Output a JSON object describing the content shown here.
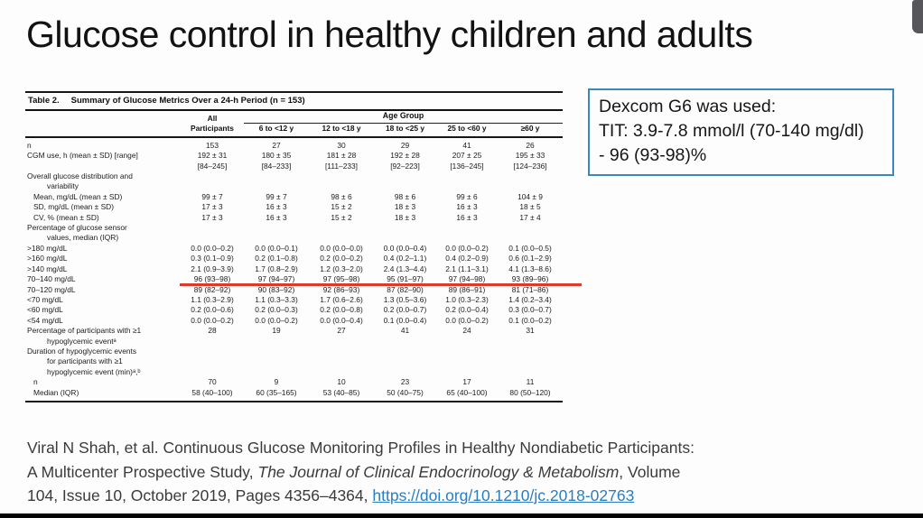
{
  "page": {
    "title": "Glucose control in healthy children and adults"
  },
  "chrome": {
    "scrollbar_thumb_color": "#57565b",
    "bottom_bar_color": "#060606"
  },
  "callout": {
    "border_color": "#3a87c6",
    "lines": [
      "Dexcom G6 was used:",
      "TIT: 3.9-7.8 mmol/l (70-140 mg/dl)",
      "- 96 (93-98)%"
    ]
  },
  "table": {
    "caption_label": "Table 2.",
    "caption_text": "Summary of Glucose Metrics Over a 24-h Period (n = 153)",
    "col_group_header": "Age Group",
    "highlight_color": "#e0392c",
    "columns": [
      "All\nParticipants",
      "6 to <12 y",
      "12 to <18 y",
      "18 to <25 y",
      "25 to <60 y",
      "≥60 y"
    ],
    "rows": [
      {
        "label": "n",
        "indent": 0,
        "values": [
          "153",
          "27",
          "30",
          "29",
          "41",
          "26"
        ]
      },
      {
        "label": "CGM use, h (mean ± SD) [range]",
        "indent": 0,
        "values": [
          "192 ± 31\n[84–245]",
          "180 ± 35\n[84–233]",
          "181 ± 28\n[111–233]",
          "192 ± 28\n[92–223]",
          "207 ± 25\n[136–245]",
          "195 ± 33\n[124–236]"
        ]
      },
      {
        "label": "Overall glucose distribution and\nvariability",
        "indent": 0,
        "values": [
          "",
          "",
          "",
          "",
          "",
          ""
        ]
      },
      {
        "label": "Mean, mg/dL (mean ± SD)",
        "indent": 1,
        "values": [
          "99 ± 7",
          "99 ± 7",
          "98 ± 6",
          "98 ± 6",
          "99 ± 6",
          "104 ± 9"
        ]
      },
      {
        "label": "SD, mg/dL (mean ± SD)",
        "indent": 1,
        "values": [
          "17 ± 3",
          "16 ± 3",
          "15 ± 2",
          "18 ± 3",
          "16 ± 3",
          "18 ± 5"
        ]
      },
      {
        "label": "CV, % (mean ± SD)",
        "indent": 1,
        "values": [
          "17 ± 3",
          "16 ± 3",
          "15 ± 2",
          "18 ± 3",
          "16 ± 3",
          "17 ± 4"
        ]
      },
      {
        "label": "Percentage of glucose sensor\nvalues, median (IQR)",
        "indent": 0,
        "values": [
          "",
          "",
          "",
          "",
          "",
          ""
        ]
      },
      {
        "label": ">180 mg/dL",
        "indent": 0,
        "values": [
          "0.0 (0.0–0.2)",
          "0.0 (0.0–0.1)",
          "0.0 (0.0–0.0)",
          "0.0 (0.0–0.4)",
          "0.0 (0.0–0.2)",
          "0.1 (0.0–0.5)"
        ]
      },
      {
        "label": ">160 mg/dL",
        "indent": 0,
        "values": [
          "0.3 (0.1–0.9)",
          "0.2 (0.1–0.8)",
          "0.2 (0.0–0.2)",
          "0.4 (0.2–1.1)",
          "0.4 (0.2–0.9)",
          "0.6 (0.1–2.9)"
        ]
      },
      {
        "label": ">140 mg/dL",
        "indent": 0,
        "values": [
          "2.1 (0.9–3.9)",
          "1.7 (0.8–2.9)",
          "1.2 (0.3–2.0)",
          "2.4 (1.3–4.4)",
          "2.1 (1.1–3.1)",
          "4.1 (1.3–8.6)"
        ]
      },
      {
        "label": "70–140 mg/dL",
        "indent": 0,
        "highlight": true,
        "values": [
          "96 (93–98)",
          "97 (94–97)",
          "97 (95–98)",
          "95 (91–97)",
          "97 (94–98)",
          "93 (89–96)"
        ]
      },
      {
        "label": "70–120 mg/dL",
        "indent": 0,
        "values": [
          "89 (82–92)",
          "90 (83–92)",
          "92 (86–93)",
          "87 (82–90)",
          "89 (86–91)",
          "81 (71–86)"
        ]
      },
      {
        "label": "<70 mg/dL",
        "indent": 0,
        "values": [
          "1.1 (0.3–2.9)",
          "1.1 (0.3–3.3)",
          "1.7 (0.6–2.6)",
          "1.3 (0.5–3.6)",
          "1.0 (0.3–2.3)",
          "1.4 (0.2–3.4)"
        ]
      },
      {
        "label": "<60 mg/dL",
        "indent": 0,
        "values": [
          "0.2 (0.0–0.6)",
          "0.2 (0.0–0.3)",
          "0.2 (0.0–0.8)",
          "0.2 (0.0–0.7)",
          "0.2 (0.0–0.4)",
          "0.3 (0.0–0.7)"
        ]
      },
      {
        "label": "<54 mg/dL",
        "indent": 0,
        "values": [
          "0.0 (0.0–0.2)",
          "0.0 (0.0–0.2)",
          "0.0 (0.0–0.4)",
          "0.1 (0.0–0.4)",
          "0.0 (0.0–0.2)",
          "0.1 (0.0–0.2)"
        ]
      },
      {
        "label": "Percentage of participants with ≥1\nhypoglycemic eventᵃ",
        "indent": 0,
        "values": [
          "28",
          "19",
          "27",
          "41",
          "24",
          "31"
        ]
      },
      {
        "label": "Duration of hypoglycemic events\nfor participants with ≥1\nhypoglycemic event (min)ᵃ,ᵇ",
        "indent": 0,
        "values": [
          "",
          "",
          "",
          "",
          "",
          ""
        ]
      },
      {
        "label": "n",
        "indent": 1,
        "values": [
          "70",
          "9",
          "10",
          "23",
          "17",
          "11"
        ]
      },
      {
        "label": "Median (IQR)",
        "indent": 1,
        "values": [
          "58 (40–100)",
          "60 (35–165)",
          "53 (40–85)",
          "50 (40–75)",
          "65 (40–100)",
          "80 (50–120)"
        ]
      }
    ]
  },
  "citation": {
    "link_color": "#2b7dc2",
    "segments": [
      {
        "text": "Viral N Shah, et al. Continuous Glucose Monitoring Profiles in Healthy Nondiabetic Participants:",
        "style": "normal",
        "br": true
      },
      {
        "text": "A Multicenter Prospective Study, ",
        "style": "normal"
      },
      {
        "text": "The Journal of Clinical Endocrinology & Metabolism",
        "style": "italic"
      },
      {
        "text": ", Volume",
        "style": "normal",
        "br": true
      },
      {
        "text": "104, Issue 10, October 2019, Pages 4356–4364, ",
        "style": "normal"
      },
      {
        "text": "https://doi.org/10.1210/jc.2018-02763",
        "style": "link"
      }
    ]
  }
}
